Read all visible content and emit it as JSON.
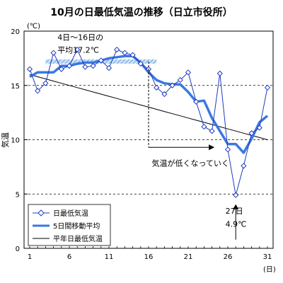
{
  "chart_data": {
    "type": "line",
    "title": "10月の日最低気温の推移（日立市役所）",
    "ylabel": "気温",
    "y_unit": "(℃)",
    "x_unit": "(日)",
    "xlim": [
      1,
      31
    ],
    "ylim": [
      0,
      20
    ],
    "x_ticks": [
      1,
      6,
      11,
      16,
      21,
      26,
      31
    ],
    "y_ticks": [
      0,
      5,
      10,
      15,
      20
    ],
    "grid": "horizontal dashed at 5, 10, 15",
    "legend_position": "bottom-left",
    "x": [
      1,
      2,
      3,
      4,
      5,
      6,
      7,
      8,
      9,
      10,
      11,
      12,
      13,
      14,
      15,
      16,
      17,
      18,
      19,
      20,
      21,
      22,
      23,
      24,
      25,
      26,
      27,
      28,
      29,
      30,
      31
    ],
    "series": [
      {
        "name": "日最低気温",
        "color": "#1f3bbf",
        "marker": "diamond",
        "values": [
          16.5,
          14.5,
          15.2,
          18.0,
          16.5,
          16.8,
          18.3,
          16.7,
          16.8,
          17.3,
          16.6,
          18.3,
          18.0,
          17.8,
          17.0,
          16.5,
          14.8,
          14.2,
          15.0,
          15.5,
          16.2,
          13.5,
          11.2,
          10.8,
          16.1,
          9.1,
          4.9,
          7.6,
          10.6,
          11.1,
          14.8
        ]
      },
      {
        "name": "5日間移動平均",
        "color": "#3a78e0",
        "values": [
          15.8,
          16.2,
          16.2,
          16.2,
          16.8,
          16.8,
          17.0,
          17.1,
          17.1,
          17.3,
          17.5,
          17.6,
          17.7,
          17.7,
          17.1,
          16.2,
          15.5,
          15.2,
          15.1,
          15.1,
          14.4,
          13.5,
          13.6,
          12.0,
          10.8,
          9.6,
          9.6,
          8.8,
          10.1,
          11.6,
          12.2
        ]
      },
      {
        "name": "平年日最低気温",
        "color": "#000000",
        "values": [
          16.0,
          15.8,
          15.6,
          15.4,
          15.2,
          15.0,
          14.8,
          14.6,
          14.4,
          14.2,
          14.0,
          13.8,
          13.6,
          13.4,
          13.2,
          13.0,
          12.8,
          12.6,
          12.4,
          12.2,
          12.0,
          11.8,
          11.6,
          11.4,
          11.2,
          11.0,
          10.8,
          10.6,
          10.4,
          10.2,
          10.0
        ]
      }
    ],
    "annotations": [
      {
        "text": "4日～16日の",
        "x": 4.5,
        "y": 19.2
      },
      {
        "text": "平均17.2℃",
        "x": 4.5,
        "y": 18.0
      },
      {
        "text": "気温が低くなっていく",
        "x": 16.4,
        "y": 7.6
      },
      {
        "text": "27日",
        "x": 25.7,
        "y": 3.2
      },
      {
        "text": "4.9℃",
        "x": 25.7,
        "y": 2.0
      }
    ],
    "hatched_band": {
      "x_from": 3,
      "x_to": 17,
      "y": 17.2,
      "color": "#9ec6ee"
    }
  }
}
